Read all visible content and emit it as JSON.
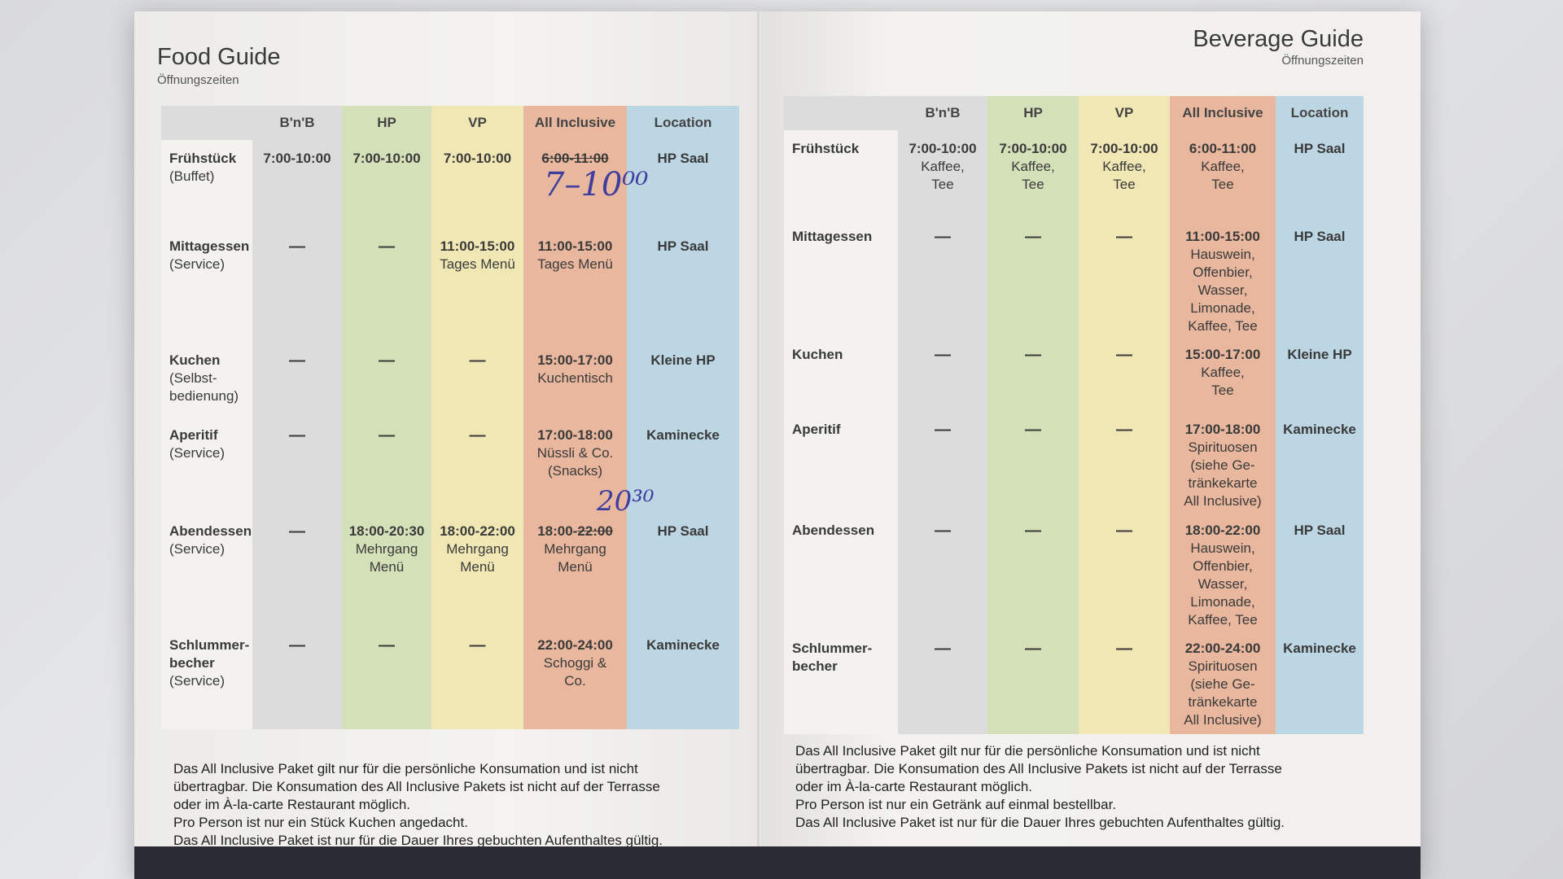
{
  "food": {
    "title": "Food Guide",
    "subtitle": "Öffnungszeiten",
    "headers": [
      "B'n'B",
      "HP",
      "VP",
      "All Inclusive",
      "Location"
    ],
    "rows": [
      {
        "label": "Frühstück",
        "sub": "(Buffet)",
        "bnb": "7:00-10:00",
        "hp": "7:00-10:00",
        "vp": "7:00-10:00",
        "ai_time": "6:00-11:00",
        "ai_desc": "",
        "loc": "HP Saal",
        "handnote": "7–10⁰⁰"
      },
      {
        "label": "Mittagessen",
        "sub": "(Service)",
        "bnb": "—",
        "hp": "—",
        "vp_time": "11:00-15:00",
        "vp_desc": "Tages Menü",
        "ai_time": "11:00-15:00",
        "ai_desc": "Tages Menü",
        "loc": "HP Saal"
      },
      {
        "label": "Kuchen",
        "sub": "(Selbst-\nbedienung)",
        "bnb": "—",
        "hp": "—",
        "vp": "—",
        "ai_time": "15:00-17:00",
        "ai_desc": "Kuchentisch",
        "loc": "Kleine HP"
      },
      {
        "label": "Aperitif",
        "sub": "(Service)",
        "bnb": "—",
        "hp": "—",
        "vp": "—",
        "ai_time": "17:00-18:00",
        "ai_desc": "Nüssli & Co.\n(Snacks)",
        "loc": "Kaminecke"
      },
      {
        "label": "Abendessen",
        "sub": "(Service)",
        "bnb": "—",
        "hp_time": "18:00-20:30",
        "hp_desc": "Mehrgang\nMenü",
        "vp_time": "18:00-22:00",
        "vp_desc": "Mehrgang\nMenü",
        "ai_time_a": "18:00-",
        "ai_time_b": "22:00",
        "ai_desc": "Mehrgang\nMenü",
        "loc": "HP Saal",
        "handnote": "20³⁰"
      },
      {
        "label": "Schlummer-\nbecher",
        "sub": "(Service)",
        "bnb": "—",
        "hp": "—",
        "vp": "—",
        "ai_time": "22:00-24:00",
        "ai_desc": "Schoggi &\nCo.",
        "loc": "Kaminecke"
      }
    ],
    "footer": [
      "Das All Inclusive Paket gilt nur für die persönliche Konsumation und ist nicht",
      "übertragbar. Die Konsumation des All Inclusive Pakets ist nicht auf der Terrasse",
      "oder im À-la-carte Restaurant möglich.",
      "Pro Person ist nur ein Stück Kuchen angedacht.",
      "Das All Inclusive Paket ist nur für die Dauer Ihres gebuchten Aufenthaltes gültig."
    ]
  },
  "beverage": {
    "title": "Beverage Guide",
    "subtitle": "Öffnungszeiten",
    "headers": [
      "B'n'B",
      "HP",
      "VP",
      "All Inclusive",
      "Location"
    ],
    "rows": [
      {
        "label": "Frühstück",
        "bnb_time": "7:00-10:00",
        "bnb_desc": "Kaffee,\nTee",
        "hp_time": "7:00-10:00",
        "hp_desc": "Kaffee,\nTee",
        "vp_time": "7:00-10:00",
        "vp_desc": "Kaffee,\nTee",
        "ai_time": "6:00-11:00",
        "ai_desc": "Kaffee,\nTee",
        "loc": "HP Saal"
      },
      {
        "label": "Mittagessen",
        "bnb": "—",
        "hp": "—",
        "vp": "—",
        "ai_time": "11:00-15:00",
        "ai_desc": "Hauswein,\nOffenbier,\nWasser,\nLimonade,\nKaffee, Tee",
        "loc": "HP Saal"
      },
      {
        "label": "Kuchen",
        "bnb": "—",
        "hp": "—",
        "vp": "—",
        "ai_time": "15:00-17:00",
        "ai_desc": "Kaffee,\nTee",
        "loc": "Kleine HP"
      },
      {
        "label": "Aperitif",
        "bnb": "—",
        "hp": "—",
        "vp": "—",
        "ai_time": "17:00-18:00",
        "ai_desc": "Spirituosen\n(siehe Ge-\ntränkekarte\nAll Inclusive)",
        "loc": "Kaminecke"
      },
      {
        "label": "Abendessen",
        "bnb": "—",
        "hp": "—",
        "vp": "—",
        "ai_time": "18:00-22:00",
        "ai_desc": "Hauswein,\nOffenbier,\nWasser,\nLimonade,\nKaffee, Tee",
        "loc": "HP Saal"
      },
      {
        "label": "Schlummer-\nbecher",
        "bnb": "—",
        "hp": "—",
        "vp": "—",
        "ai_time": "22:00-24:00",
        "ai_desc": "Spirituosen\n(siehe Ge-\ntränkekarte\nAll Inclusive)",
        "loc": "Kaminecke"
      }
    ],
    "footer": [
      "Das All Inclusive Paket gilt nur für die persönliche Konsumation und ist nicht",
      "übertragbar. Die Konsumation des All Inclusive Pakets ist nicht auf der Terrasse",
      "oder im À-la-carte Restaurant möglich.",
      "Pro Person ist nur ein Getränk auf einmal bestellbar.",
      "Das All Inclusive Paket ist nur für die Dauer Ihres gebuchten Aufenthaltes gültig."
    ]
  }
}
